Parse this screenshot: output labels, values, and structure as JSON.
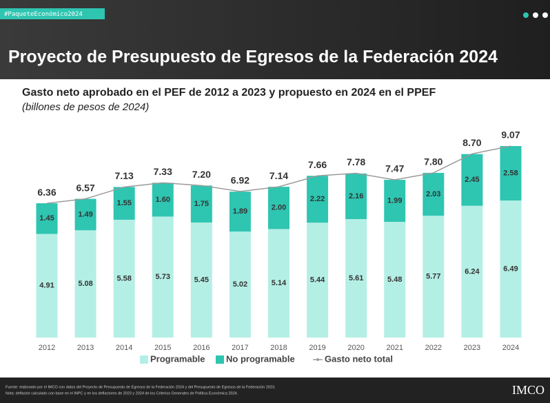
{
  "header": {
    "hashtag": "#PaqueteEconómico2024",
    "title": "Proyecto de Presupuesto de Egresos de la Federación 2024"
  },
  "chart_data": {
    "type": "bar",
    "stacked": true,
    "title": "Gasto neto aprobado en el PEF de 2012 a 2023 y propuesto en 2024 en el PPEF",
    "subtitle": "(billones de pesos de 2024)",
    "categories": [
      "2012",
      "2013",
      "2014",
      "2015",
      "2016",
      "2017",
      "2018",
      "2019",
      "2020",
      "2021",
      "2022",
      "2023",
      "2024"
    ],
    "series": [
      {
        "name": "Programable",
        "color": "#b4efe5",
        "values": [
          4.91,
          5.08,
          5.58,
          5.73,
          5.45,
          5.02,
          5.14,
          5.44,
          5.61,
          5.48,
          5.77,
          6.24,
          6.49
        ],
        "value_labels": [
          "4.91",
          "5.08",
          "5.58",
          "5.73",
          "5.45",
          "5.02",
          "5.14",
          "5.44",
          "5.61",
          "5.48",
          "5.77",
          "6.24",
          "6.49"
        ]
      },
      {
        "name": "No programable",
        "color": "#2ec5b1",
        "values": [
          1.45,
          1.49,
          1.55,
          1.6,
          1.75,
          1.89,
          2.0,
          2.22,
          2.16,
          1.99,
          2.03,
          2.45,
          2.58
        ],
        "value_labels": [
          "1.45",
          "1.49",
          "1.55",
          "1.60",
          "1.75",
          "1.89",
          "2.00",
          "2.22",
          "2.16",
          "1.99",
          "2.03",
          "2.45",
          "2.58"
        ]
      },
      {
        "name": "Gasto neto total",
        "type": "line",
        "color": "#9a9a9a",
        "values": [
          6.36,
          6.57,
          7.13,
          7.33,
          7.2,
          6.92,
          7.14,
          7.66,
          7.78,
          7.47,
          7.8,
          8.7,
          9.07
        ],
        "value_labels": [
          "6.36",
          "6.57",
          "7.13",
          "7.33",
          "7.20",
          "6.92",
          "7.14",
          "7.66",
          "7.78",
          "7.47",
          "7.80",
          "8.70",
          "9.07"
        ]
      }
    ]
  },
  "footer": {
    "source": "Fuente: elaborado por el IMCO con datos del Proyecto de Presupuesto de Egresos de la Federación 2024 y del Presupuesto de Egresos de la Federación 2023.",
    "note": "Nota: deflactor calculado con base en el INPC y en los deflactores de 2023 y 2024 de los Criterios Generales de Política Económica 2024.",
    "logo": "IMCO"
  }
}
